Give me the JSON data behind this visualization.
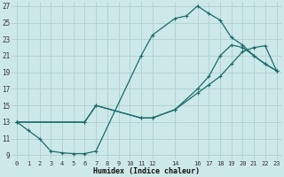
{
  "xlabel": "Humidex (Indice chaleur)",
  "bg_color": "#cde8e8",
  "grid_color": "#b0cfcf",
  "line_color": "#1a6b6b",
  "xlim": [
    -0.5,
    23.5
  ],
  "ylim": [
    8.5,
    27.5
  ],
  "xticks": [
    0,
    1,
    2,
    3,
    4,
    5,
    6,
    7,
    8,
    9,
    10,
    11,
    12,
    14,
    16,
    17,
    18,
    19,
    20,
    21,
    22,
    23
  ],
  "yticks": [
    9,
    11,
    13,
    15,
    17,
    19,
    21,
    23,
    25,
    27
  ],
  "curve1_x": [
    0,
    1,
    2,
    3,
    4,
    5,
    6,
    7,
    11,
    12,
    14,
    15,
    16,
    17,
    18,
    19,
    20,
    21,
    22,
    23
  ],
  "curve1_y": [
    13,
    12,
    11,
    9.5,
    9.3,
    9.2,
    9.2,
    9.5,
    21,
    23.5,
    25.5,
    25.8,
    27,
    26.1,
    25.3,
    23.2,
    22.3,
    21,
    20,
    19.2
  ],
  "curve2_x": [
    0,
    6,
    7,
    11,
    12,
    14,
    16,
    17,
    18,
    19,
    20,
    21,
    22,
    23
  ],
  "curve2_y": [
    13,
    13,
    15,
    13.5,
    13.5,
    14.5,
    17.0,
    18.5,
    21.0,
    22.3,
    22.0,
    21.0,
    20.0,
    19.2
  ],
  "curve3_x": [
    0,
    6,
    7,
    11,
    12,
    14,
    16,
    17,
    18,
    19,
    20,
    21,
    22,
    23
  ],
  "curve3_y": [
    13,
    13,
    15,
    13.5,
    13.5,
    14.5,
    16.5,
    17.5,
    18.5,
    20.0,
    21.5,
    22.0,
    22.2,
    19.2
  ]
}
